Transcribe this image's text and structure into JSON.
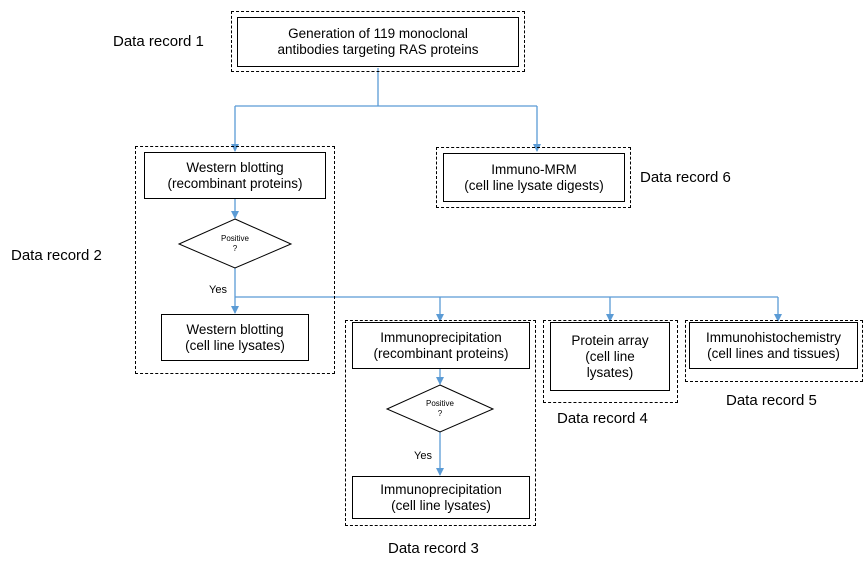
{
  "records": {
    "r1": "Data record 1",
    "r2": "Data record 2",
    "r3": "Data record 3",
    "r4": "Data record 4",
    "r5": "Data record 5",
    "r6": "Data record 6"
  },
  "boxes": {
    "generation": [
      "Generation of 119 monoclonal",
      "antibodies targeting RAS proteins"
    ],
    "wb_recombinant": [
      "Western blotting",
      "(recombinant proteins)"
    ],
    "wb_lysates": [
      "Western blotting",
      "(cell line lysates)"
    ],
    "immuno_mrm": [
      "Immuno-MRM",
      "(cell line lysate digests)"
    ],
    "ip_recombinant": [
      "Immunoprecipitation",
      "(recombinant proteins)"
    ],
    "ip_lysates": [
      "Immunoprecipitation",
      "(cell line lysates)"
    ],
    "protein_array": [
      "Protein array",
      "(cell line",
      "lysates)"
    ],
    "ihc": [
      "Immunohistochemistry",
      "(cell lines and tissues)"
    ]
  },
  "decisions": {
    "d1": [
      "Positive",
      "?"
    ],
    "d2": [
      "Positive",
      "?"
    ]
  },
  "yes_labels": {
    "y1": "Yes",
    "y2": "Yes"
  },
  "colors": {
    "arrow": "#5b9bd5",
    "border": "#000000"
  }
}
